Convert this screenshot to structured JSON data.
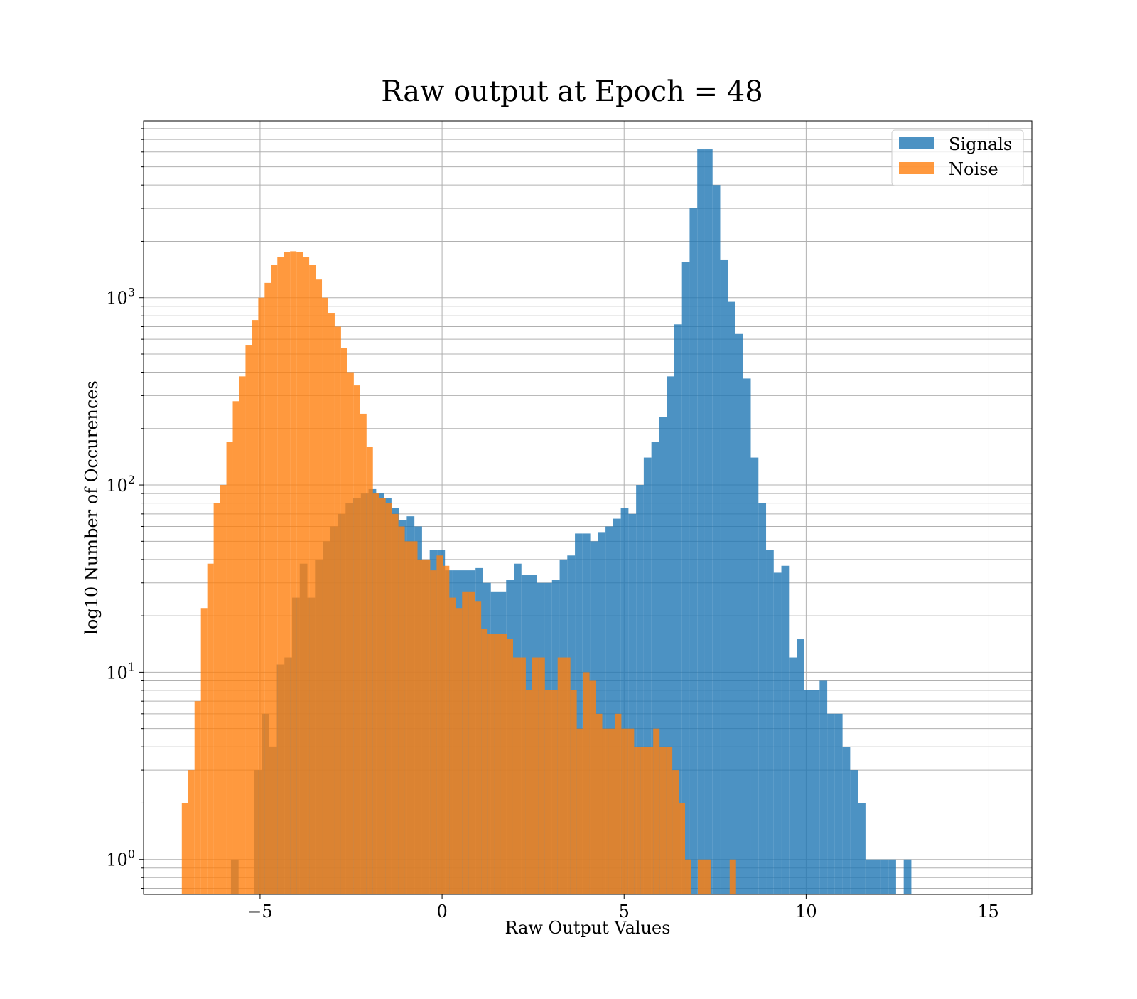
{
  "chart_data": {
    "type": "histogram",
    "title": "Raw output at Epoch = 48",
    "xlabel": "Raw Output Values",
    "ylabel": "log10 Number of Occurences",
    "xlim": [
      -8.2,
      16.2
    ],
    "ylim": [
      0.65,
      8800
    ],
    "yscale": "log",
    "grid": true,
    "grid_minor_y": true,
    "legend_position": "top-right",
    "xticks": [
      {
        "value": -5,
        "label": "−5"
      },
      {
        "value": 0,
        "label": "0"
      },
      {
        "value": 5,
        "label": "5"
      },
      {
        "value": 10,
        "label": "10"
      },
      {
        "value": 15,
        "label": "15"
      }
    ],
    "yticks": [
      {
        "value": 1,
        "base": "10",
        "exp": "0"
      },
      {
        "value": 10,
        "base": "10",
        "exp": "1"
      },
      {
        "value": 100,
        "base": "10",
        "exp": "2"
      },
      {
        "value": 1000,
        "base": "10",
        "exp": "3"
      }
    ],
    "series": [
      {
        "name": "Signals",
        "color": "#1f77b4",
        "opacity": 0.8,
        "bin_start": -5.8,
        "bin_width": 0.21,
        "counts": [
          1,
          0,
          0,
          3,
          6,
          4,
          11,
          12,
          25,
          38,
          25,
          40,
          50,
          60,
          70,
          80,
          85,
          90,
          95,
          90,
          85,
          75,
          65,
          68,
          60,
          40,
          45,
          45,
          35,
          35,
          35,
          35,
          36,
          30,
          27,
          27,
          31,
          38,
          33,
          33,
          30,
          30,
          31,
          40,
          42,
          55,
          55,
          50,
          56,
          60,
          66,
          75,
          70,
          100,
          140,
          170,
          230,
          380,
          720,
          1550,
          3000,
          6200,
          6200,
          4000,
          1600,
          950,
          640,
          370,
          140,
          80,
          45,
          34,
          37,
          12,
          15,
          8,
          8,
          9,
          6,
          6,
          4,
          3,
          2,
          1,
          1,
          1,
          1,
          0,
          1
        ]
      },
      {
        "name": "Noise",
        "color": "#ff7f0e",
        "opacity": 0.8,
        "bin_start": -7.15,
        "bin_width": 0.175,
        "counts": [
          2,
          3,
          7,
          22,
          38,
          80,
          100,
          170,
          280,
          380,
          560,
          760,
          1000,
          1200,
          1500,
          1650,
          1750,
          1770,
          1750,
          1650,
          1500,
          1250,
          1000,
          830,
          700,
          540,
          400,
          340,
          240,
          160,
          90,
          85,
          80,
          70,
          60,
          50,
          50,
          40,
          40,
          35,
          42,
          37,
          25,
          22,
          27,
          27,
          24,
          17,
          16,
          16,
          16,
          15,
          12,
          12,
          8,
          12,
          12,
          8,
          8,
          12,
          12,
          8,
          5,
          10,
          9,
          6,
          5,
          5,
          6,
          5,
          5,
          4,
          4,
          4,
          5,
          4,
          4,
          3,
          2,
          1,
          0,
          1,
          1,
          0,
          0,
          0,
          1
        ]
      }
    ]
  },
  "theme": {
    "text_color": "#000000",
    "grid_color": "#b0b0b0",
    "background": "#ffffff"
  }
}
